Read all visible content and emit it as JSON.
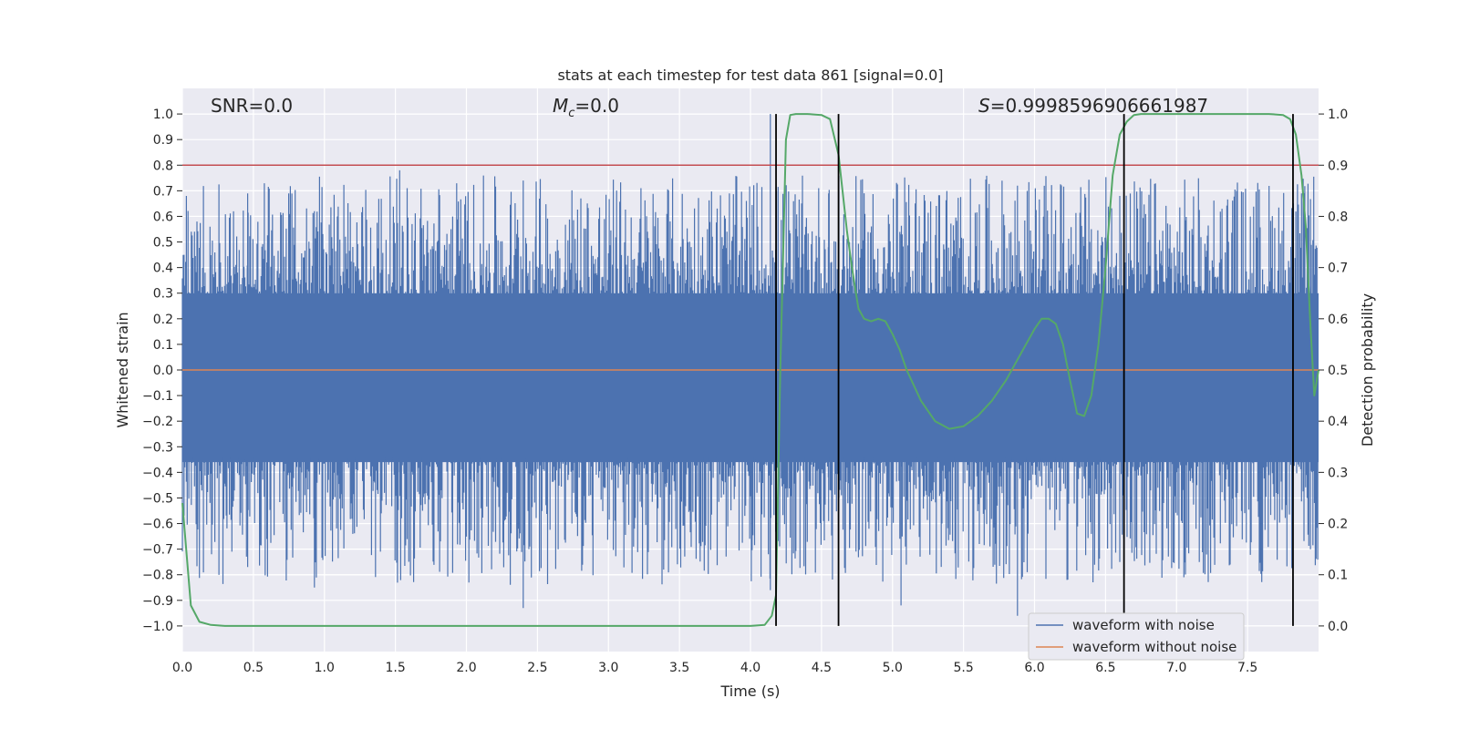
{
  "chart_data": {
    "type": "line",
    "title": "stats at each timestep for test data 861 [signal=0.0]",
    "xlabel": "Time (s)",
    "ylabel": "Whitened strain",
    "ylabel_right": "Detection probability",
    "xlim": [
      0.0,
      8.0
    ],
    "ylim": [
      -1.1,
      1.1
    ],
    "ylim_right": [
      -0.05,
      1.05
    ],
    "x_ticks": [
      "0.0",
      "0.5",
      "1.0",
      "1.5",
      "2.0",
      "2.5",
      "3.0",
      "3.5",
      "4.0",
      "4.5",
      "5.0",
      "5.5",
      "6.0",
      "6.5",
      "7.0",
      "7.5"
    ],
    "y_ticks": [
      "1.0",
      "0.9",
      "0.8",
      "0.7",
      "0.6",
      "0.5",
      "0.4",
      "0.3",
      "0.2",
      "0.1",
      "0.0",
      "−0.1",
      "−0.2",
      "−0.3",
      "−0.4",
      "−0.5",
      "−0.6",
      "−0.7",
      "−0.8",
      "−0.9",
      "−1.0"
    ],
    "y_right_ticks": [
      "1.0",
      "0.9",
      "0.8",
      "0.7",
      "0.6",
      "0.5",
      "0.4",
      "0.3",
      "0.2",
      "0.1",
      "0.0"
    ],
    "annotations": {
      "snr": "SNR=0.0",
      "mc_symbol": "M",
      "mc_sub": "c",
      "mc_value": "=0.0",
      "s_symbol": "S",
      "s_value": "=0.9998596906661987"
    },
    "threshold_right": 0.9,
    "vertical_lines_x": [
      4.18,
      4.62,
      6.63,
      7.82
    ],
    "series": [
      {
        "name": "waveform with noise",
        "color": "#4c72b0",
        "band_min": -0.36,
        "band_max": 0.3,
        "peak_max": 1.0,
        "peak_min": -0.95
      },
      {
        "name": "waveform without noise",
        "color": "#dd8452",
        "value": 0.0
      },
      {
        "name": "detection probability",
        "color": "#55a868",
        "axis": "right",
        "x": [
          0.0,
          0.06,
          0.12,
          0.2,
          0.3,
          0.5,
          1.0,
          2.0,
          3.0,
          3.5,
          4.0,
          4.1,
          4.15,
          4.18,
          4.21,
          4.25,
          4.28,
          4.32,
          4.4,
          4.5,
          4.56,
          4.62,
          4.68,
          4.72,
          4.76,
          4.8,
          4.85,
          4.9,
          4.95,
          5.0,
          5.05,
          5.1,
          5.2,
          5.3,
          5.4,
          5.5,
          5.6,
          5.7,
          5.8,
          5.9,
          6.0,
          6.05,
          6.1,
          6.15,
          6.2,
          6.25,
          6.3,
          6.35,
          6.4,
          6.45,
          6.5,
          6.55,
          6.6,
          6.65,
          6.7,
          6.75,
          6.85,
          7.0,
          7.5,
          7.65,
          7.75,
          7.8,
          7.84,
          7.88,
          7.91,
          7.94,
          7.97,
          8.0
        ],
        "y": [
          0.24,
          0.04,
          0.008,
          0.002,
          0.0,
          0.0,
          0.0,
          0.0,
          0.0,
          0.0,
          0.0,
          0.002,
          0.02,
          0.06,
          0.5,
          0.95,
          0.998,
          1.0,
          1.0,
          0.998,
          0.99,
          0.92,
          0.77,
          0.69,
          0.62,
          0.6,
          0.595,
          0.6,
          0.595,
          0.57,
          0.54,
          0.5,
          0.44,
          0.4,
          0.385,
          0.39,
          0.41,
          0.44,
          0.48,
          0.53,
          0.58,
          0.6,
          0.6,
          0.59,
          0.55,
          0.48,
          0.415,
          0.41,
          0.45,
          0.55,
          0.7,
          0.88,
          0.96,
          0.985,
          0.998,
          1.0,
          1.0,
          1.0,
          1.0,
          1.0,
          0.998,
          0.99,
          0.96,
          0.88,
          0.78,
          0.6,
          0.45,
          0.5
        ]
      }
    ],
    "legend_position": "lower-right"
  }
}
